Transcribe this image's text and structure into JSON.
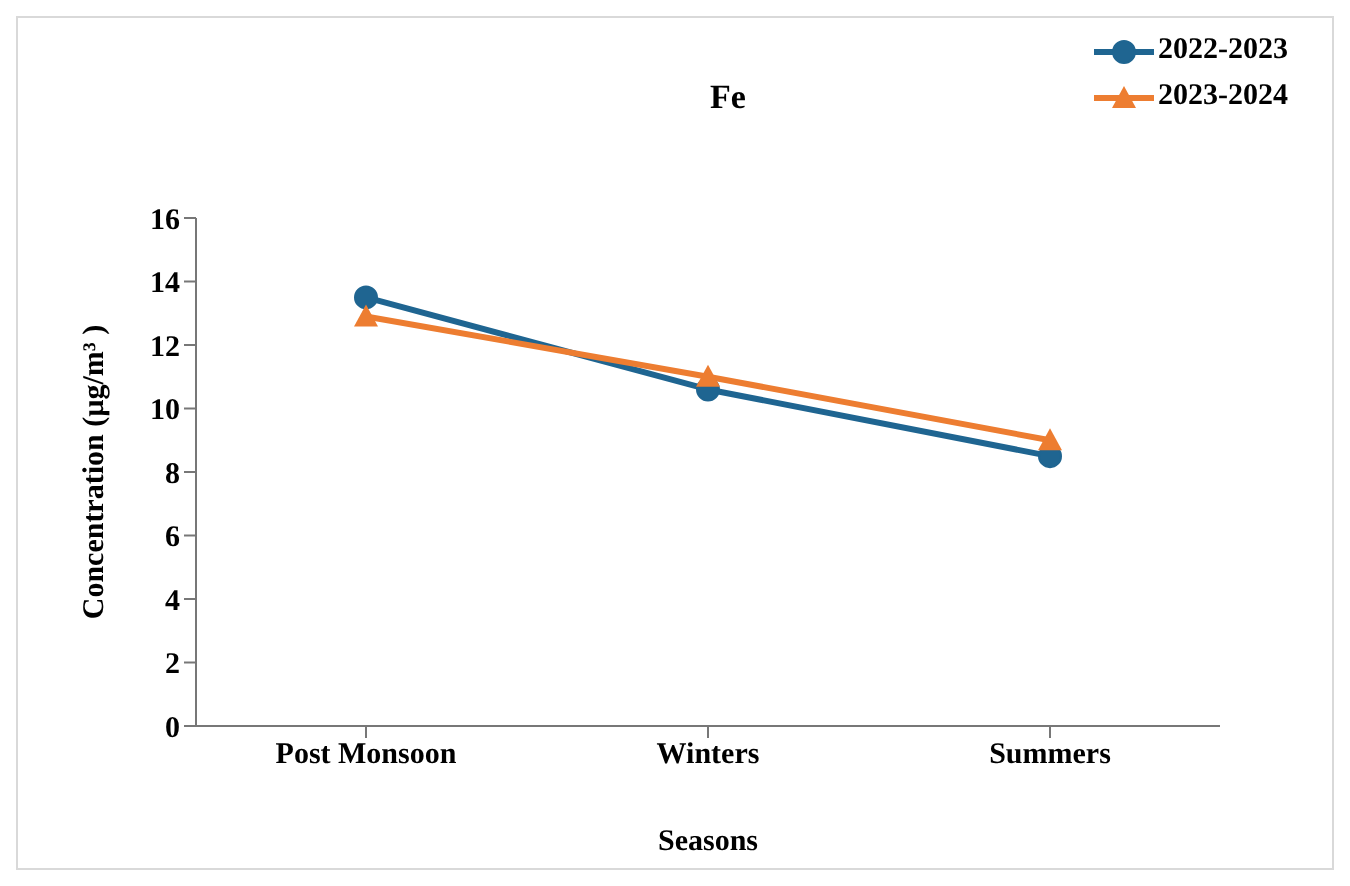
{
  "chart_data": {
    "type": "line",
    "title": "Fe",
    "xlabel": "Seasons",
    "ylabel": "Concentration (µg/m³ )",
    "categories": [
      "Post Monsoon",
      "Winters",
      "Summers"
    ],
    "series": [
      {
        "name": "2022-2023",
        "color": "#1f6591",
        "values": [
          13.5,
          10.6,
          8.5
        ],
        "marker": "circle"
      },
      {
        "name": "2023-2024",
        "color": "#ed7d31",
        "values": [
          12.9,
          11.0,
          9.0
        ],
        "marker": "triangle"
      }
    ],
    "ylim": [
      0,
      16
    ],
    "yticks": [
      0,
      2,
      4,
      6,
      8,
      10,
      12,
      14,
      16
    ],
    "legend": "top right",
    "grid": false
  }
}
